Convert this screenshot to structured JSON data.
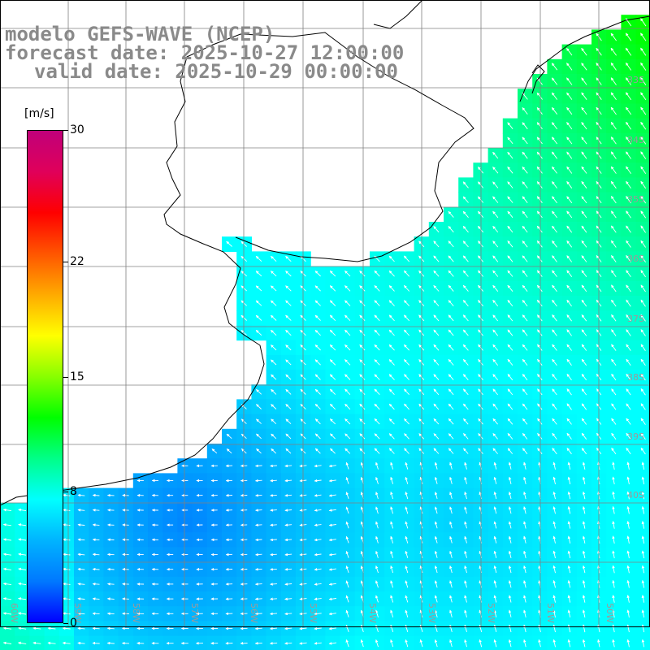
{
  "title": {
    "line1": "modelo GEFS-WAVE (NCEP)",
    "line2": "forecast date: 2025-10-27 12:00:00",
    "line3": "valid date: 2025-10-29 00:00:00"
  },
  "colorbar": {
    "unit": "[m/s]",
    "min": 0,
    "max": 30,
    "ticks": [
      {
        "value": 30,
        "label": "30"
      },
      {
        "value": 22,
        "label": "22"
      },
      {
        "value": 15,
        "label": "15"
      },
      {
        "value": 8,
        "label": "8"
      },
      {
        "value": 0,
        "label": "0"
      }
    ],
    "stops": [
      "#0000ff",
      "#0078ff",
      "#00b4ff",
      "#00ffff",
      "#00ff88",
      "#00ff00",
      "#88ff00",
      "#ffff00",
      "#ffaa00",
      "#ff5500",
      "#ff0000",
      "#e0005a",
      "#c0007a"
    ]
  },
  "map": {
    "lon_labels": [
      "60W",
      "59W",
      "58W",
      "57W",
      "56W",
      "55W",
      "54W",
      "53W",
      "52W",
      "51W",
      "50W"
    ],
    "lat_labels": [
      "33S",
      "34S",
      "35S",
      "36S",
      "37S",
      "38S",
      "39S",
      "40S"
    ],
    "field": "wind speed"
  }
}
